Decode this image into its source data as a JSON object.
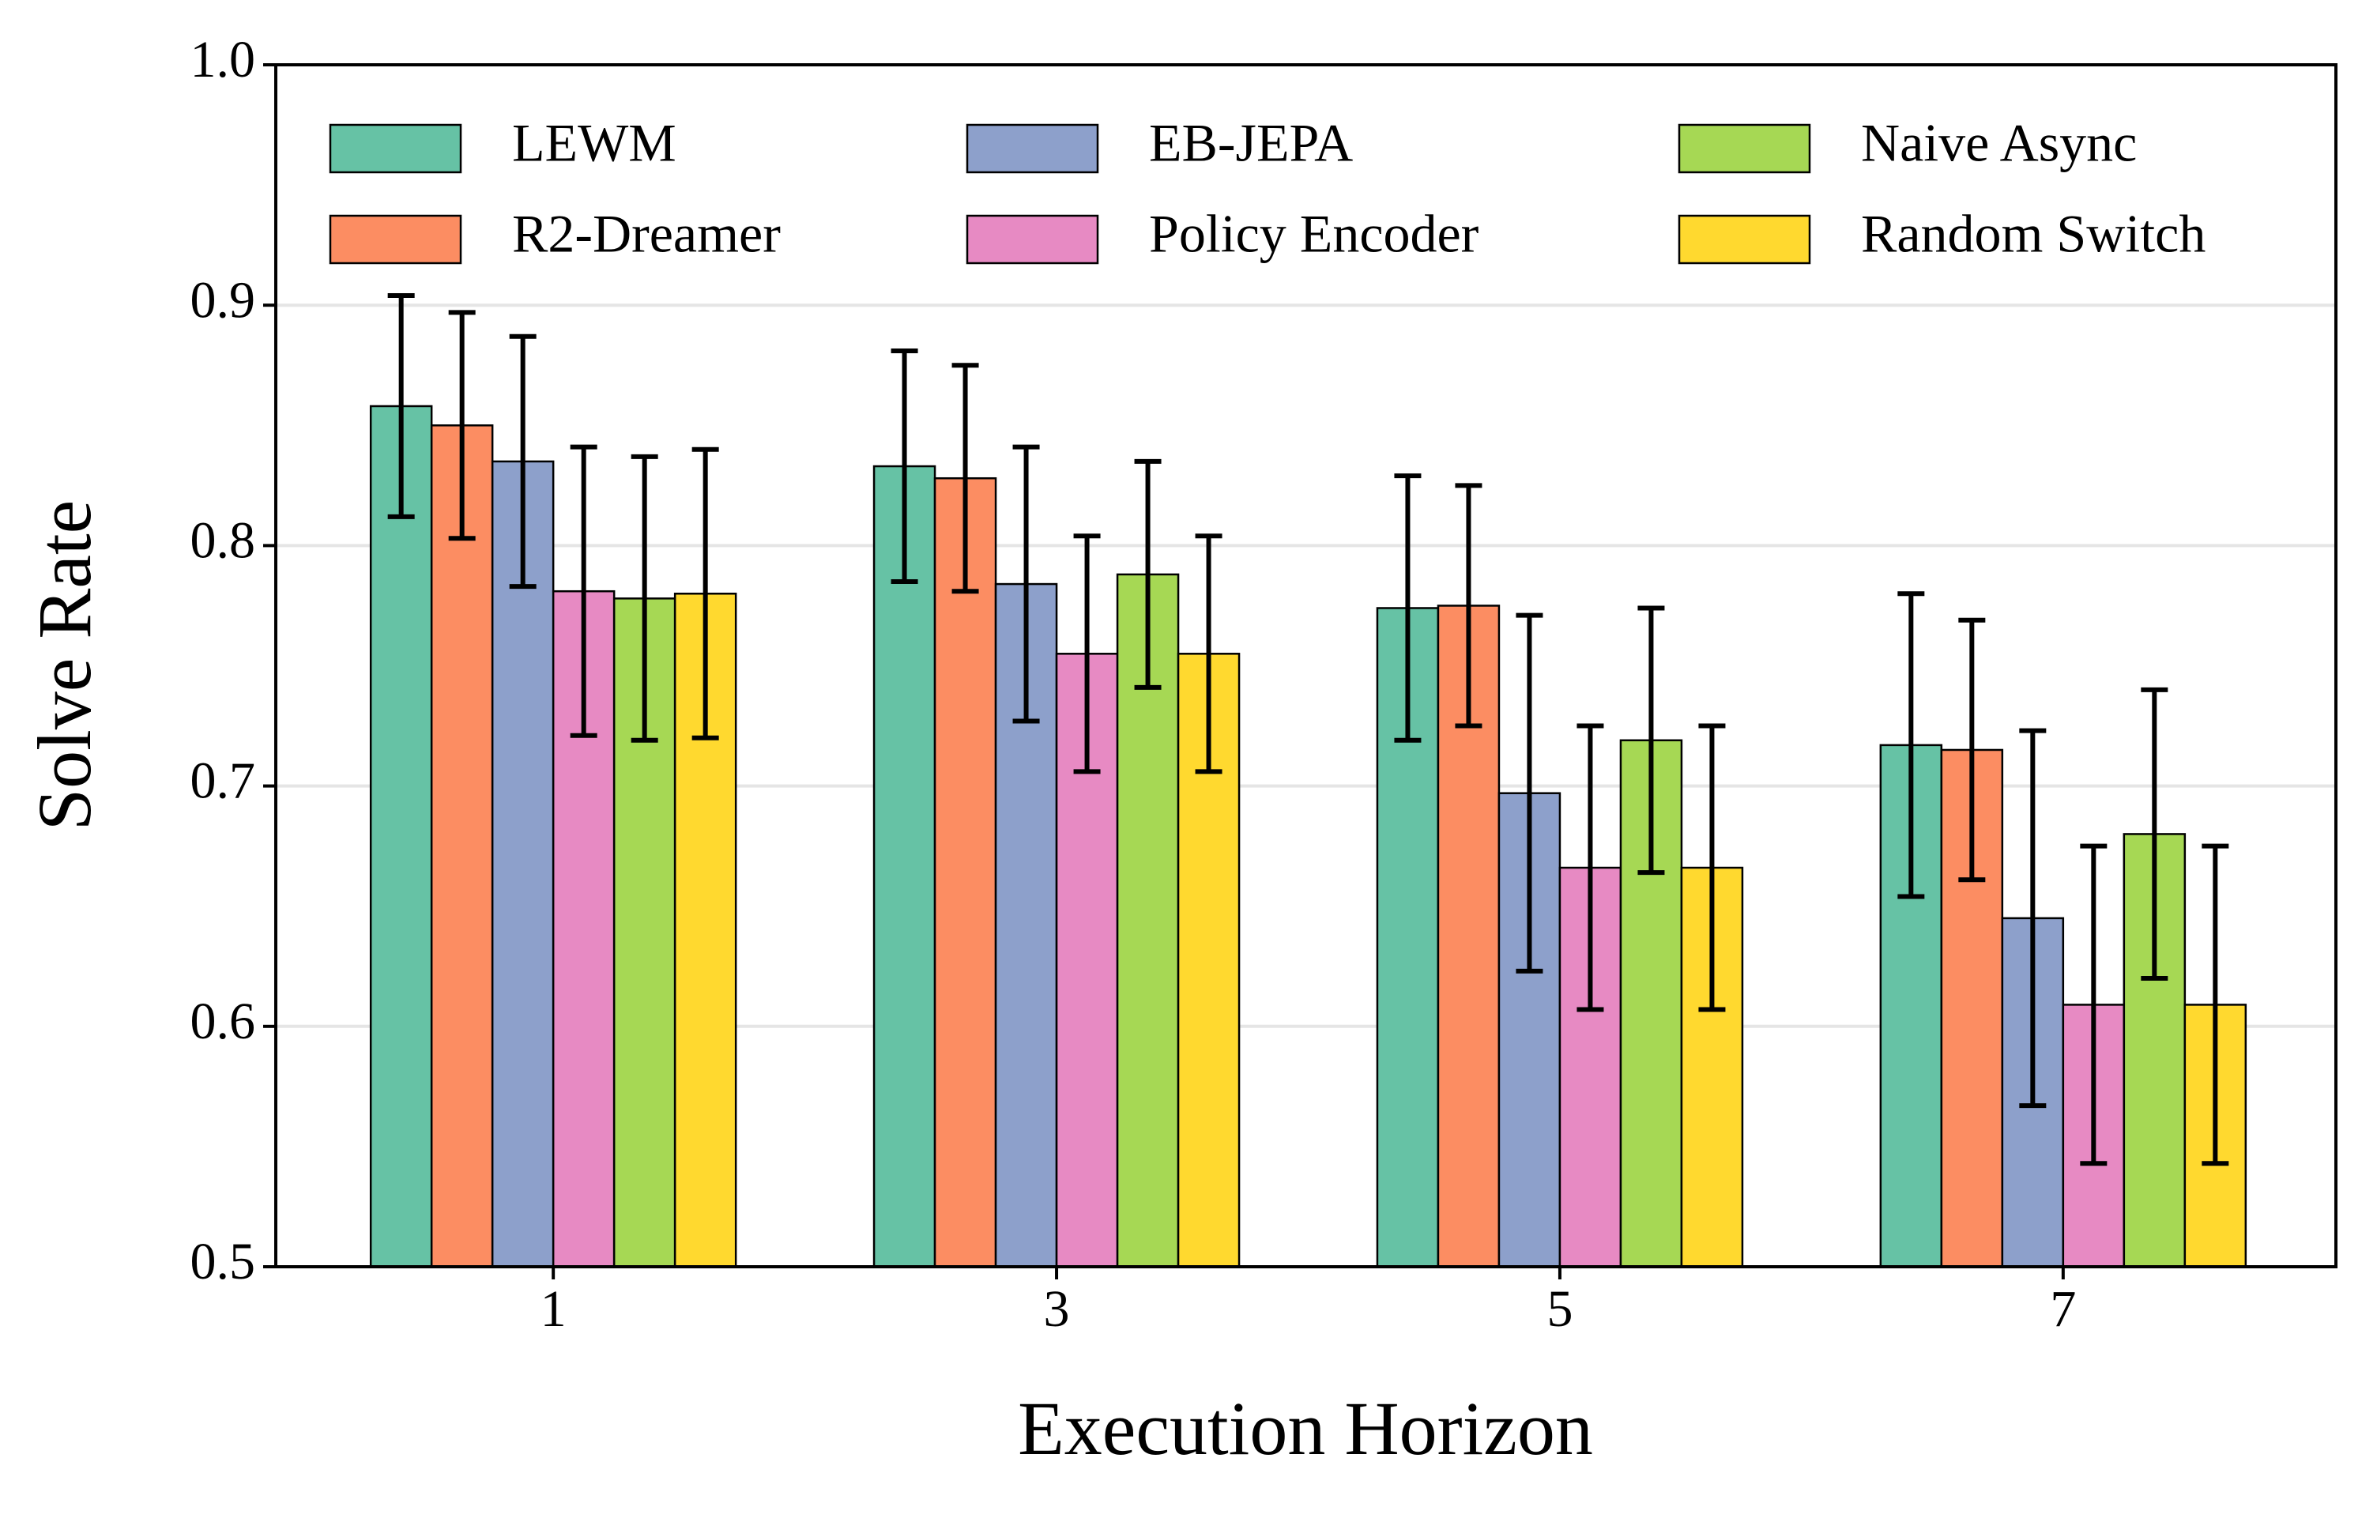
{
  "chart_data": {
    "type": "bar",
    "xlabel": "Execution Horizon",
    "ylabel": "Solve Rate",
    "categories": [
      "1",
      "3",
      "5",
      "7"
    ],
    "series": [
      {
        "name": "LEWM",
        "color": "#66c2a5",
        "values": [
          0.858,
          0.833,
          0.774,
          0.717
        ],
        "errors": [
          0.046,
          0.048,
          0.055,
          0.063
        ]
      },
      {
        "name": "R2-Dreamer",
        "color": "#fc8d62",
        "values": [
          0.85,
          0.828,
          0.775,
          0.715
        ],
        "errors": [
          0.047,
          0.047,
          0.05,
          0.054
        ]
      },
      {
        "name": "EB-JEPA",
        "color": "#8da0cb",
        "values": [
          0.835,
          0.784,
          0.697,
          0.645
        ],
        "errors": [
          0.052,
          0.057,
          0.074,
          0.078
        ]
      },
      {
        "name": "Policy Encoder",
        "color": "#e78ac3",
        "values": [
          0.781,
          0.755,
          0.666,
          0.609
        ],
        "errors": [
          0.06,
          0.049,
          0.059,
          0.066
        ]
      },
      {
        "name": "Naive Async",
        "color": "#a6d854",
        "values": [
          0.778,
          0.788,
          0.719,
          0.68
        ],
        "errors": [
          0.059,
          0.047,
          0.055,
          0.06
        ]
      },
      {
        "name": "Random Switch",
        "color": "#ffd92f",
        "values": [
          0.78,
          0.755,
          0.666,
          0.609
        ],
        "errors": [
          0.06,
          0.049,
          0.059,
          0.066
        ]
      }
    ],
    "ylim": [
      0.5,
      1.0
    ],
    "yticks": [
      0.5,
      0.6,
      0.7,
      0.8,
      0.9,
      {
        "value": 1.0,
        "label": "1.0"
      }
    ],
    "grid": true,
    "legend": "upper"
  }
}
